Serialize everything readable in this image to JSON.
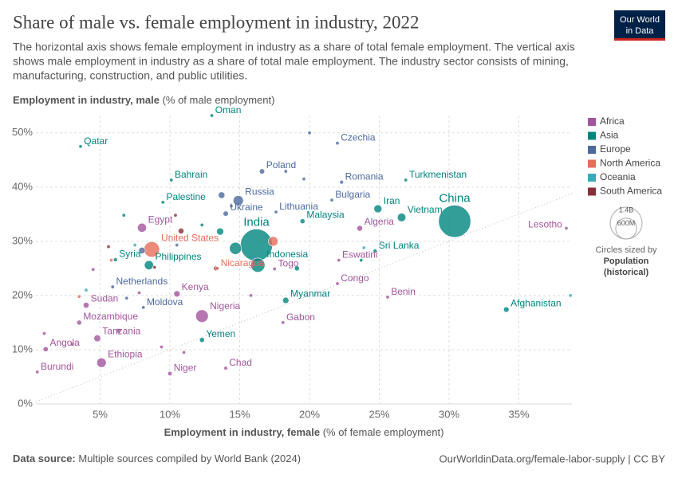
{
  "chart_data": {
    "type": "scatter",
    "title": "Share of male vs. female employment in industry, 2022",
    "subtitle": [
      "The horizontal axis shows female employment in industry as a share of total female employment. The vertical axis",
      "shows male employment in industry as a share of total male employment. The industry sector consists of mining,",
      "manufacturing, construction, and public utilities."
    ],
    "logo": [
      "Our World",
      "in Data"
    ],
    "ylabel": "Employment in industry, male",
    "ylabel_unit": " (% of male employment)",
    "xlabel": "Employment in industry, female",
    "xlabel_unit": " (% of female employment)",
    "xlim": [
      0.4,
      38.8
    ],
    "ylim": [
      0,
      53.2
    ],
    "xticks": [
      {
        "value": 5,
        "label": "5%"
      },
      {
        "value": 10,
        "label": "10%"
      },
      {
        "value": 15,
        "label": "15%"
      },
      {
        "value": 20,
        "label": "20%"
      },
      {
        "value": 25,
        "label": "25%"
      },
      {
        "value": 30,
        "label": "30%"
      },
      {
        "value": 35,
        "label": "35%"
      }
    ],
    "yticks": [
      {
        "value": 0,
        "label": "0%"
      },
      {
        "value": 10,
        "label": "10%"
      },
      {
        "value": 20,
        "label": "20%"
      },
      {
        "value": 30,
        "label": "30%"
      },
      {
        "value": 40,
        "label": "40%"
      },
      {
        "value": 50,
        "label": "50%"
      }
    ],
    "grid": true,
    "legend_position": "right",
    "size_legend": {
      "title": "Circles sized by",
      "name": [
        "Population",
        "(historical)"
      ],
      "ticks": [
        {
          "value": 1400000000,
          "label": "1.4B"
        },
        {
          "value": 600000000,
          "label": "600M"
        }
      ]
    },
    "series": [
      {
        "name": "Africa",
        "color": "#a2559c",
        "labels": [
          "Egypt",
          "Algeria",
          "Lesotho",
          "Eswatini",
          "Congo",
          "Togo",
          "Kenya",
          "Benin",
          "Nigeria",
          "Gabon",
          "Sudan",
          "Mozambique",
          "Tanzania",
          "Angola",
          "Ethiopia",
          "Burundi",
          "Chad",
          "Niger",
          null,
          null,
          null,
          null,
          null,
          null,
          null,
          null
        ],
        "x": [
          8.0,
          23.6,
          38.4,
          22.1,
          22.0,
          17.5,
          10.5,
          25.6,
          12.3,
          18.1,
          4.0,
          3.5,
          4.8,
          1.1,
          5.1,
          0.5,
          14.0,
          10.0,
          3.0,
          1.0,
          6.3,
          7.8,
          11.0,
          4.5,
          15.8,
          9.4
        ],
        "y": [
          32.5,
          32.4,
          32.4,
          26.5,
          22.2,
          24.9,
          20.3,
          19.7,
          16.2,
          15.0,
          18.2,
          15.0,
          12.1,
          10.1,
          7.6,
          5.9,
          6.6,
          5.6,
          11.0,
          13.0,
          13.5,
          20.5,
          9.5,
          24.8,
          20.0,
          10.5
        ],
        "sizes": [
          111000000,
          45000000,
          2300000,
          1200000,
          6000000,
          9000000,
          54000000,
          13000000,
          218000000,
          2400000,
          47000000,
          33000000,
          65000000,
          36000000,
          123000000,
          13000000,
          18000000,
          26000000,
          10000000,
          5000000,
          30000000,
          10000000,
          5000000,
          5000000,
          5000000,
          15000000
        ]
      },
      {
        "name": "Asia",
        "color": "#00847e",
        "labels": [
          "Oman",
          "Qatar",
          "Bahrain",
          "Palestine",
          "Turkmenistan",
          "Iran",
          "Vietnam",
          "China",
          "India",
          "Indonesia",
          "Malaysia",
          "Sri Lanka",
          "Philippines",
          "Syria",
          "Yemen",
          "Afghanistan",
          "Myanmar",
          null,
          null,
          null,
          null,
          null,
          null
        ],
        "x": [
          13.0,
          3.6,
          10.1,
          9.5,
          26.9,
          24.9,
          26.6,
          30.4,
          16.2,
          16.3,
          19.5,
          24.7,
          8.5,
          6.1,
          12.3,
          34.1,
          18.3,
          14.7,
          19.1,
          13.6,
          6.7,
          23.7,
          12.3
        ],
        "y": [
          53.2,
          47.5,
          41.3,
          37.2,
          41.3,
          36.0,
          34.4,
          33.7,
          29.3,
          25.6,
          33.7,
          28.2,
          25.6,
          26.6,
          11.8,
          17.4,
          19.1,
          28.7,
          25.0,
          31.8,
          34.8,
          26.5,
          33.0
        ],
        "sizes": [
          4600000,
          2700000,
          1500000,
          5000000,
          6400000,
          88000000,
          98000000,
          1425000000,
          1417000000,
          275000000,
          34000000,
          22000000,
          115000000,
          22000000,
          33000000,
          41000000,
          54000000,
          200000000,
          35000000,
          70000000,
          5000000,
          5000000,
          10000000
        ]
      },
      {
        "name": "Europe",
        "color": "#4c6a9c",
        "labels": [
          "Czechia",
          "Poland",
          "Romania",
          "Russia",
          "Bulgaria",
          "Lithuania",
          "Ukraine",
          "Moldova",
          "Netherlands",
          null,
          null,
          null,
          null,
          null,
          null,
          null,
          null
        ],
        "x": [
          22.0,
          16.6,
          22.3,
          14.9,
          21.6,
          17.6,
          14.0,
          8.1,
          5.9,
          20.0,
          18.3,
          19.6,
          13.7,
          14.4,
          8.0,
          10.5,
          6.9
        ],
        "y": [
          48.1,
          42.9,
          40.9,
          37.5,
          37.6,
          35.4,
          35.1,
          17.8,
          21.6,
          50.0,
          42.9,
          41.5,
          38.5,
          36.5,
          28.3,
          29.3,
          19.5
        ],
        "sizes": [
          10500000,
          38000000,
          19000000,
          144000000,
          6800000,
          2800000,
          39000000,
          3300000,
          17600000,
          5000000,
          5000000,
          5000000,
          60000000,
          10000000,
          60000000,
          10000000,
          5000000
        ]
      },
      {
        "name": "North America",
        "color": "#e56e5a",
        "labels": [
          "United States",
          "Nicaragua",
          null,
          null,
          null
        ],
        "x": [
          8.7,
          13.4,
          17.4,
          5.8,
          3.5
        ],
        "y": [
          28.5,
          25.0,
          30.0,
          26.5,
          19.8
        ],
        "sizes": [
          333000000,
          6900000,
          128000000,
          5000000,
          3000000
        ]
      },
      {
        "name": "Oceania",
        "color": "#38aaba",
        "labels": [
          null,
          null,
          null,
          null
        ],
        "x": [
          38.7,
          23.9,
          4.0,
          7.5
        ],
        "y": [
          20.0,
          28.8,
          21.0,
          29.3
        ],
        "sizes": [
          1000000,
          1000000,
          1000000,
          1000000
        ]
      },
      {
        "name": "South America",
        "color": "#883039",
        "labels": [
          null,
          null,
          null,
          null,
          null
        ],
        "x": [
          10.8,
          13.3,
          8.9,
          10.4,
          5.6
        ],
        "y": [
          31.9,
          25.0,
          25.2,
          34.8,
          29.0
        ],
        "sizes": [
          46000000,
          30000000,
          10000000,
          10000000,
          5000000
        ]
      }
    ],
    "source_label": "Data source:",
    "source": " Multiple sources compiled by World Bank (2024)",
    "url": "OurWorldinData.org/female-labor-supply | CC BY"
  }
}
